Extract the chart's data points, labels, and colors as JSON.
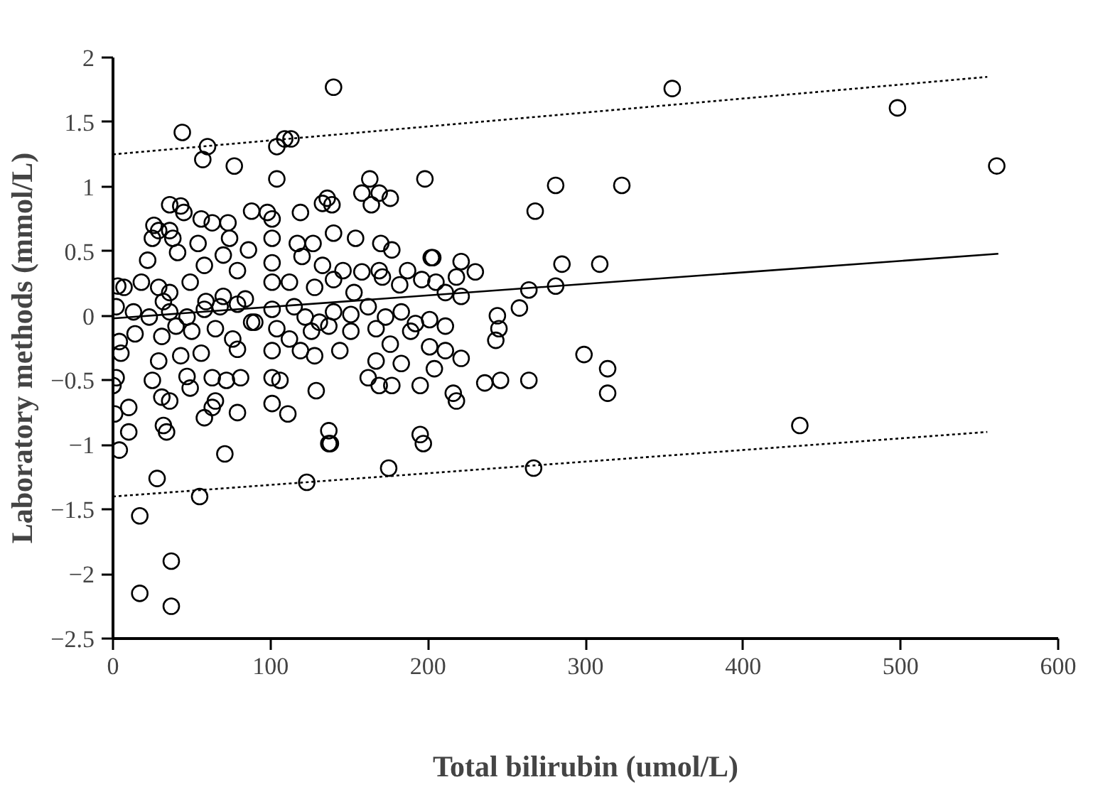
{
  "chart_data": {
    "type": "scatter",
    "xlabel": "Total bilirubin (umol/L)",
    "ylabel": "Laboratory methods (mmol/L)",
    "xlim": [
      0,
      600
    ],
    "ylim": [
      -2.5,
      2
    ],
    "xticks": [
      0,
      100,
      200,
      300,
      400,
      500,
      600
    ],
    "yticks": [
      -2.5,
      -2,
      -1.5,
      -1,
      -0.5,
      0,
      0.5,
      1,
      1.5,
      2
    ],
    "grid": false,
    "marker": "circle",
    "series": [
      {
        "color": "#000000",
        "x": [
          140,
          44,
          60,
          57,
          77,
          104,
          109,
          113,
          104,
          163,
          158,
          169,
          176,
          164,
          198,
          136,
          133,
          139,
          36,
          43,
          45,
          88,
          98,
          101,
          119,
          56,
          63,
          73,
          26,
          25,
          29,
          36,
          38,
          54,
          74,
          86,
          101,
          117,
          127,
          140,
          154,
          170,
          177,
          22,
          41,
          58,
          70,
          79,
          101,
          120,
          133,
          146,
          158,
          169,
          187,
          203,
          3,
          7,
          18,
          29,
          36,
          49,
          59,
          70,
          84,
          101,
          112,
          128,
          140,
          153,
          171,
          182,
          196,
          205,
          2,
          13,
          23,
          32,
          36,
          47,
          58,
          68,
          79,
          90,
          101,
          115,
          122,
          131,
          140,
          151,
          162,
          173,
          183,
          192,
          201,
          4,
          14,
          31,
          40,
          50,
          65,
          76,
          88,
          104,
          112,
          126,
          137,
          151,
          167,
          176,
          189,
          201,
          5,
          29,
          43,
          56,
          79,
          101,
          119,
          128,
          144,
          167,
          183,
          2,
          0,
          25,
          47,
          63,
          72,
          81,
          101,
          106,
          129,
          162,
          169,
          177,
          195,
          31,
          36,
          49,
          65,
          63,
          1,
          10,
          58,
          79,
          101,
          111,
          10,
          32,
          34,
          4,
          137,
          137,
          138,
          195,
          197,
          71,
          28,
          55,
          123,
          175,
          17,
          37,
          17,
          37,
          355,
          498,
          561,
          281,
          323,
          268,
          285,
          309,
          202,
          221,
          230,
          264,
          281,
          258,
          244,
          245,
          243,
          211,
          221,
          211,
          204,
          299,
          314,
          314,
          236,
          246,
          264,
          216,
          218,
          436,
          267,
          218,
          211,
          221
        ],
        "values": [
          1.77,
          1.42,
          1.31,
          1.21,
          1.16,
          1.31,
          1.37,
          1.37,
          1.06,
          1.06,
          0.95,
          0.95,
          0.91,
          0.86,
          1.06,
          0.91,
          0.87,
          0.86,
          0.86,
          0.85,
          0.8,
          0.81,
          0.8,
          0.75,
          0.8,
          0.75,
          0.72,
          0.72,
          0.7,
          0.6,
          0.66,
          0.66,
          0.6,
          0.56,
          0.6,
          0.51,
          0.6,
          0.56,
          0.56,
          0.64,
          0.6,
          0.56,
          0.51,
          0.43,
          0.49,
          0.39,
          0.47,
          0.35,
          0.41,
          0.46,
          0.39,
          0.35,
          0.34,
          0.35,
          0.35,
          0.45,
          0.23,
          0.22,
          0.26,
          0.22,
          0.18,
          0.26,
          0.11,
          0.15,
          0.13,
          0.26,
          0.26,
          0.22,
          0.28,
          0.18,
          0.3,
          0.24,
          0.28,
          0.26,
          0.07,
          0.03,
          -0.01,
          0.11,
          0.03,
          -0.01,
          0.05,
          0.07,
          0.09,
          -0.05,
          0.05,
          0.07,
          -0.01,
          -0.05,
          0.03,
          0.01,
          0.07,
          -0.01,
          0.03,
          -0.06,
          -0.03,
          -0.2,
          -0.14,
          -0.16,
          -0.08,
          -0.12,
          -0.1,
          -0.18,
          -0.05,
          -0.1,
          -0.18,
          -0.12,
          -0.08,
          -0.12,
          -0.1,
          -0.22,
          -0.12,
          -0.24,
          -0.29,
          -0.35,
          -0.31,
          -0.29,
          -0.26,
          -0.27,
          -0.27,
          -0.31,
          -0.27,
          -0.35,
          -0.37,
          -0.48,
          -0.54,
          -0.5,
          -0.47,
          -0.48,
          -0.5,
          -0.48,
          -0.48,
          -0.5,
          -0.58,
          -0.48,
          -0.54,
          -0.54,
          -0.54,
          -0.63,
          -0.66,
          -0.56,
          -0.66,
          -0.71,
          -0.76,
          -0.71,
          -0.79,
          -0.75,
          -0.68,
          -0.76,
          -0.9,
          -0.85,
          -0.9,
          -1.04,
          -0.89,
          -0.99,
          -0.99,
          -0.92,
          -0.99,
          -1.07,
          -1.26,
          -1.4,
          -1.29,
          -1.18,
          -1.55,
          -1.9,
          -2.15,
          -2.25,
          1.76,
          1.61,
          1.16,
          1.01,
          1.01,
          0.81,
          0.4,
          0.4,
          0.45,
          0.42,
          0.34,
          0.2,
          0.23,
          0.06,
          0.0,
          -0.1,
          -0.19,
          -0.08,
          -0.33,
          -0.27,
          -0.41,
          -0.3,
          -0.41,
          -0.6,
          -0.52,
          -0.5,
          -0.5,
          -0.6,
          -0.66,
          -0.85,
          -1.18,
          0.3,
          0.18,
          0.15
        ]
      },
      {
        "type": "line",
        "color": "#000000",
        "marker": "none",
        "line_style": "solid",
        "x": [
          0,
          562
        ],
        "values": [
          -0.02,
          0.48
        ]
      },
      {
        "type": "line",
        "color": "#000000",
        "marker": "none",
        "line_style": "dotted",
        "x": [
          0,
          555
        ],
        "values": [
          1.25,
          1.85
        ]
      },
      {
        "type": "line",
        "color": "#000000",
        "marker": "none",
        "line_style": "dotted",
        "x": [
          0,
          555
        ],
        "values": [
          -1.4,
          -0.9
        ]
      }
    ]
  }
}
